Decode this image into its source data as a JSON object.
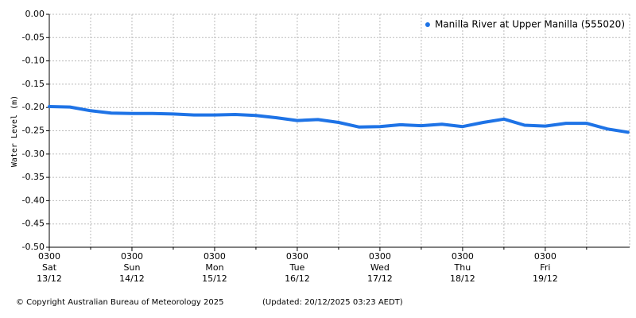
{
  "chart_data": {
    "type": "line",
    "y_label": "Water Level (m)",
    "x": [
      "13/12 0300",
      "13/12 0900",
      "13/12 1500",
      "13/12 2100",
      "14/12 0300",
      "14/12 0900",
      "14/12 1500",
      "14/12 2100",
      "15/12 0300",
      "15/12 0900",
      "15/12 1500",
      "15/12 2100",
      "16/12 0300",
      "16/12 0900",
      "16/12 1500",
      "16/12 2100",
      "17/12 0300",
      "17/12 0900",
      "17/12 1500",
      "17/12 2100",
      "18/12 0300",
      "18/12 0900",
      "18/12 1500",
      "18/12 2100",
      "19/12 0300",
      "19/12 0900",
      "19/12 1500",
      "19/12 2100",
      "20/12 0300"
    ],
    "series": [
      {
        "name": "Manilla River at Upper Manilla (555020)",
        "color": "#1e73e6",
        "values": [
          -0.198,
          -0.199,
          -0.207,
          -0.212,
          -0.213,
          -0.213,
          -0.214,
          -0.216,
          -0.216,
          -0.215,
          -0.217,
          -0.222,
          -0.228,
          -0.226,
          -0.232,
          -0.242,
          -0.241,
          -0.237,
          -0.239,
          -0.236,
          -0.241,
          -0.232,
          -0.225,
          -0.238,
          -0.24,
          -0.234,
          -0.234,
          -0.246,
          -0.253
        ]
      }
    ],
    "xlim": [
      "13/12 0300",
      "20/12 0330"
    ],
    "xticks": [
      {
        "value": "13/12 0300",
        "label": [
          "0300",
          "Sat",
          "13/12"
        ]
      },
      {
        "value": "14/12 0300",
        "label": [
          "0300",
          "Sun",
          "14/12"
        ]
      },
      {
        "value": "15/12 0300",
        "label": [
          "0300",
          "Mon",
          "15/12"
        ]
      },
      {
        "value": "16/12 0300",
        "label": [
          "0300",
          "Tue",
          "16/12"
        ]
      },
      {
        "value": "17/12 0300",
        "label": [
          "0300",
          "Wed",
          "17/12"
        ]
      },
      {
        "value": "18/12 0300",
        "label": [
          "0300",
          "Thu",
          "18/12"
        ]
      },
      {
        "value": "19/12 0300",
        "label": [
          "0300",
          "Fri",
          "19/12"
        ]
      }
    ],
    "xminor": [
      "13/12 1500",
      "14/12 1500",
      "15/12 1500",
      "16/12 1500",
      "17/12 1500",
      "18/12 1500",
      "19/12 1500"
    ],
    "ylim": [
      -0.5,
      0
    ],
    "yticks": [
      {
        "value": 0,
        "label": "0.00"
      },
      {
        "value": -0.05,
        "label": "-0.05"
      },
      {
        "value": -0.1,
        "label": "-0.10"
      },
      {
        "value": -0.15,
        "label": "-0.15"
      },
      {
        "value": -0.2,
        "label": "-0.20"
      },
      {
        "value": -0.25,
        "label": "-0.25"
      },
      {
        "value": -0.3,
        "label": "-0.30"
      },
      {
        "value": -0.35,
        "label": "-0.35"
      },
      {
        "value": -0.4,
        "label": "-0.40"
      },
      {
        "value": -0.45,
        "label": "-0.45"
      },
      {
        "value": -0.5,
        "label": "-0.50"
      }
    ],
    "grid": true,
    "legend": "top-right",
    "copyright": "© Copyright Australian Bureau of Meteorology 2025",
    "updated": "(Updated: 20/12/2025 03:23 AEDT)"
  }
}
